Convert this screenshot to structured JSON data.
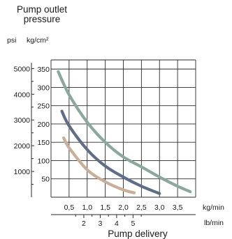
{
  "chart_data": {
    "type": "line",
    "title": "Pump outlet pressure",
    "xlabel": "Pump delivery",
    "y_units": [
      "psi",
      "kg/cm²"
    ],
    "x_units": [
      "kg/min",
      "lb/min"
    ],
    "x_primary": {
      "unit": "kg/min",
      "range": [
        0,
        4
      ],
      "ticks": [
        0.5,
        1.0,
        1.5,
        2.0,
        2.5,
        3.0,
        3.5
      ],
      "tick_labels": [
        "0,5",
        "1,0",
        "1,5",
        "2,0",
        "2,5",
        "3,0",
        "3,5"
      ]
    },
    "x_secondary": {
      "unit": "lb/min",
      "ticks": [
        2,
        3,
        4,
        5
      ],
      "tick_labels": [
        "2",
        "3",
        "4",
        "5"
      ]
    },
    "y_primary": {
      "unit": "kg/cm²",
      "range": [
        0,
        375
      ],
      "ticks": [
        50,
        100,
        150,
        200,
        250,
        300,
        350
      ],
      "tick_labels": [
        "50",
        "100",
        "150",
        "200",
        "250",
        "300",
        "350"
      ]
    },
    "y_secondary": {
      "unit": "psi",
      "ticks": [
        1000,
        2000,
        3000,
        4000,
        5000
      ],
      "tick_labels": [
        "1000",
        "2000",
        "3000",
        "4000",
        "5000"
      ]
    },
    "grid": true,
    "series": [
      {
        "color": "#8aa89c",
        "x": [
          0.2,
          0.5,
          1.0,
          1.5,
          2.0,
          2.5,
          3.0,
          3.5,
          3.85
        ],
        "y": [
          343,
          280,
          205,
          150,
          110,
          83,
          55,
          30,
          15
        ]
      },
      {
        "color": "#5f6d87",
        "x": [
          0.3,
          0.5,
          1.0,
          1.5,
          2.0,
          2.5,
          3.0
        ],
        "y": [
          235,
          195,
          130,
          85,
          55,
          30,
          10
        ]
      },
      {
        "color": "#c9ae98",
        "x": [
          0.35,
          0.5,
          1.0,
          1.5,
          2.0,
          2.3
        ],
        "y": [
          162,
          135,
          75,
          42,
          20,
          12
        ]
      }
    ]
  }
}
